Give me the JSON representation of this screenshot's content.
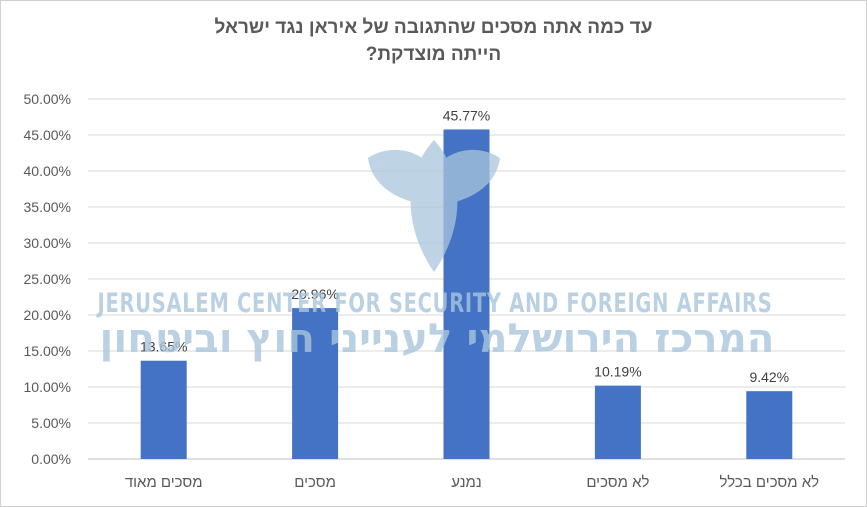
{
  "chart_data": {
    "type": "bar",
    "title_lines": [
      "עד כמה אתה מסכים שהתגובה של איראן נגד ישראל",
      "הייתה מוצדקת?"
    ],
    "categories": [
      "מסכים מאוד",
      "מסכים",
      "נמנע",
      "לא מסכים",
      "לא מסכים בכלל"
    ],
    "values": [
      13.65,
      20.96,
      45.77,
      10.19,
      9.42
    ],
    "value_labels": [
      "13.65%",
      "20.96%",
      "45.77%",
      "10.19%",
      "9.42%"
    ],
    "ylim": [
      0,
      50
    ],
    "yticks": [
      "0.00%",
      "5.00%",
      "10.00%",
      "15.00%",
      "20.00%",
      "25.00%",
      "30.00%",
      "35.00%",
      "40.00%",
      "45.00%",
      "50.00%"
    ],
    "grid": true,
    "bar_color": "#4472c4"
  },
  "watermark": {
    "english": "JERUSALEM CENTER FOR SECURITY AND FOREIGN AFFAIRS",
    "hebrew": "המרכז הירושלמי לענייני חוץ וביטחון",
    "color": "#a9c6dd"
  }
}
